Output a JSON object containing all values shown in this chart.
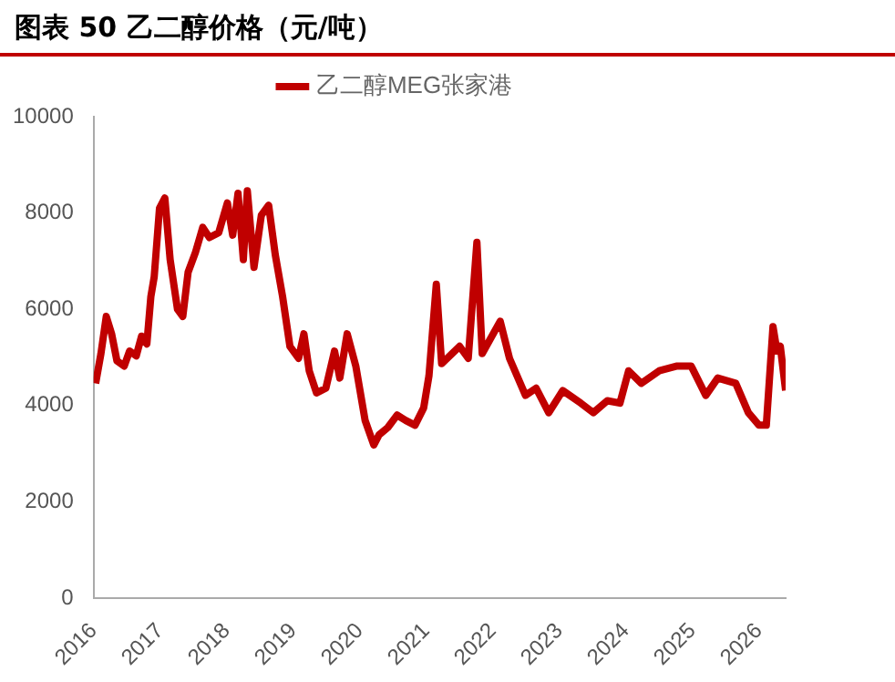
{
  "chart_data": {
    "type": "line",
    "title": "图表 50 乙二醇价格（元/吨）",
    "xlim": [
      2016,
      2026.4
    ],
    "xticks": [
      2016,
      2017,
      2018,
      2019,
      2020,
      2021,
      2022,
      2023,
      2024,
      2025,
      2026
    ],
    "ylim": [
      0,
      10000
    ],
    "yticks": [
      0,
      2000,
      4000,
      6000,
      8000,
      10000
    ],
    "grid": false,
    "legend": "top",
    "marker": "none",
    "line_style": "solid",
    "series": [
      {
        "name": "乙二醇MEG张家港",
        "color": "#c00000",
        "x": [
          2016.03,
          2016.11,
          2016.19,
          2016.27,
          2016.35,
          2016.46,
          2016.54,
          2016.64,
          2016.72,
          2016.8,
          2016.86,
          2016.91,
          2016.99,
          2017.07,
          2017.15,
          2017.26,
          2017.34,
          2017.42,
          2017.53,
          2017.64,
          2017.74,
          2017.88,
          2018.01,
          2018.09,
          2018.17,
          2018.25,
          2018.31,
          2018.41,
          2018.52,
          2018.63,
          2018.73,
          2018.84,
          2018.95,
          2019.08,
          2019.16,
          2019.24,
          2019.35,
          2019.49,
          2019.62,
          2019.7,
          2019.81,
          2019.94,
          2020.08,
          2020.21,
          2020.29,
          2020.42,
          2020.56,
          2020.69,
          2020.83,
          2020.96,
          2021.04,
          2021.15,
          2021.23,
          2021.5,
          2021.63,
          2021.76,
          2021.84,
          2022.11,
          2022.25,
          2022.49,
          2022.65,
          2022.84,
          2023.05,
          2023.32,
          2023.51,
          2023.72,
          2023.91,
          2024.04,
          2024.23,
          2024.5,
          2024.77,
          2024.98,
          2025.2,
          2025.38,
          2025.65,
          2025.84,
          2026.0,
          2026.11,
          2026.21,
          2026.27,
          2026.32,
          2026.4
        ],
        "values": [
          4460,
          5080,
          5850,
          5490,
          4930,
          4820,
          5130,
          5030,
          5440,
          5280,
          6260,
          6670,
          8100,
          8310,
          7030,
          6000,
          5850,
          6770,
          7180,
          7700,
          7490,
          7590,
          8210,
          7540,
          8410,
          7030,
          8460,
          6870,
          7950,
          8160,
          7130,
          6260,
          5230,
          4980,
          5490,
          4720,
          4260,
          4360,
          5130,
          4570,
          5490,
          4820,
          3690,
          3180,
          3390,
          3540,
          3800,
          3690,
          3590,
          3950,
          4620,
          6520,
          4870,
          5230,
          4980,
          7390,
          5080,
          5750,
          4980,
          4210,
          4360,
          3850,
          4310,
          4050,
          3850,
          4100,
          4050,
          4720,
          4460,
          4720,
          4820,
          4820,
          4210,
          4570,
          4460,
          3850,
          3590,
          3590,
          5640,
          5130,
          5230,
          4310
        ]
      }
    ]
  }
}
